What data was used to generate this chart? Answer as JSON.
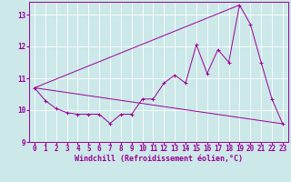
{
  "background_color": "#cce8e8",
  "line_color": "#990099",
  "xlabel": "Windchill (Refroidissement éolien,°C)",
  "xlabel_fontsize": 6.0,
  "tick_fontsize": 5.5,
  "xlim": [
    -0.5,
    23.5
  ],
  "ylim": [
    9.0,
    13.4
  ],
  "yticks": [
    9,
    10,
    11,
    12,
    13
  ],
  "xticks": [
    0,
    1,
    2,
    3,
    4,
    5,
    6,
    7,
    8,
    9,
    10,
    11,
    12,
    13,
    14,
    15,
    16,
    17,
    18,
    19,
    20,
    21,
    22,
    23
  ],
  "line1_x": [
    0,
    1,
    2,
    3,
    4,
    5,
    6,
    7,
    8,
    9,
    10,
    11,
    12,
    13,
    14,
    15,
    16,
    17,
    18,
    19,
    20,
    21,
    22,
    23
  ],
  "line1_y": [
    10.7,
    10.3,
    10.05,
    9.92,
    9.87,
    9.87,
    9.87,
    9.58,
    9.87,
    9.87,
    10.35,
    10.35,
    10.85,
    11.1,
    10.85,
    12.05,
    11.15,
    11.9,
    11.5,
    13.3,
    12.7,
    11.5,
    10.35,
    9.57
  ],
  "line2_x": [
    0,
    23
  ],
  "line2_y": [
    10.7,
    9.57
  ],
  "line3_x": [
    0,
    19
  ],
  "line3_y": [
    10.7,
    13.3
  ]
}
